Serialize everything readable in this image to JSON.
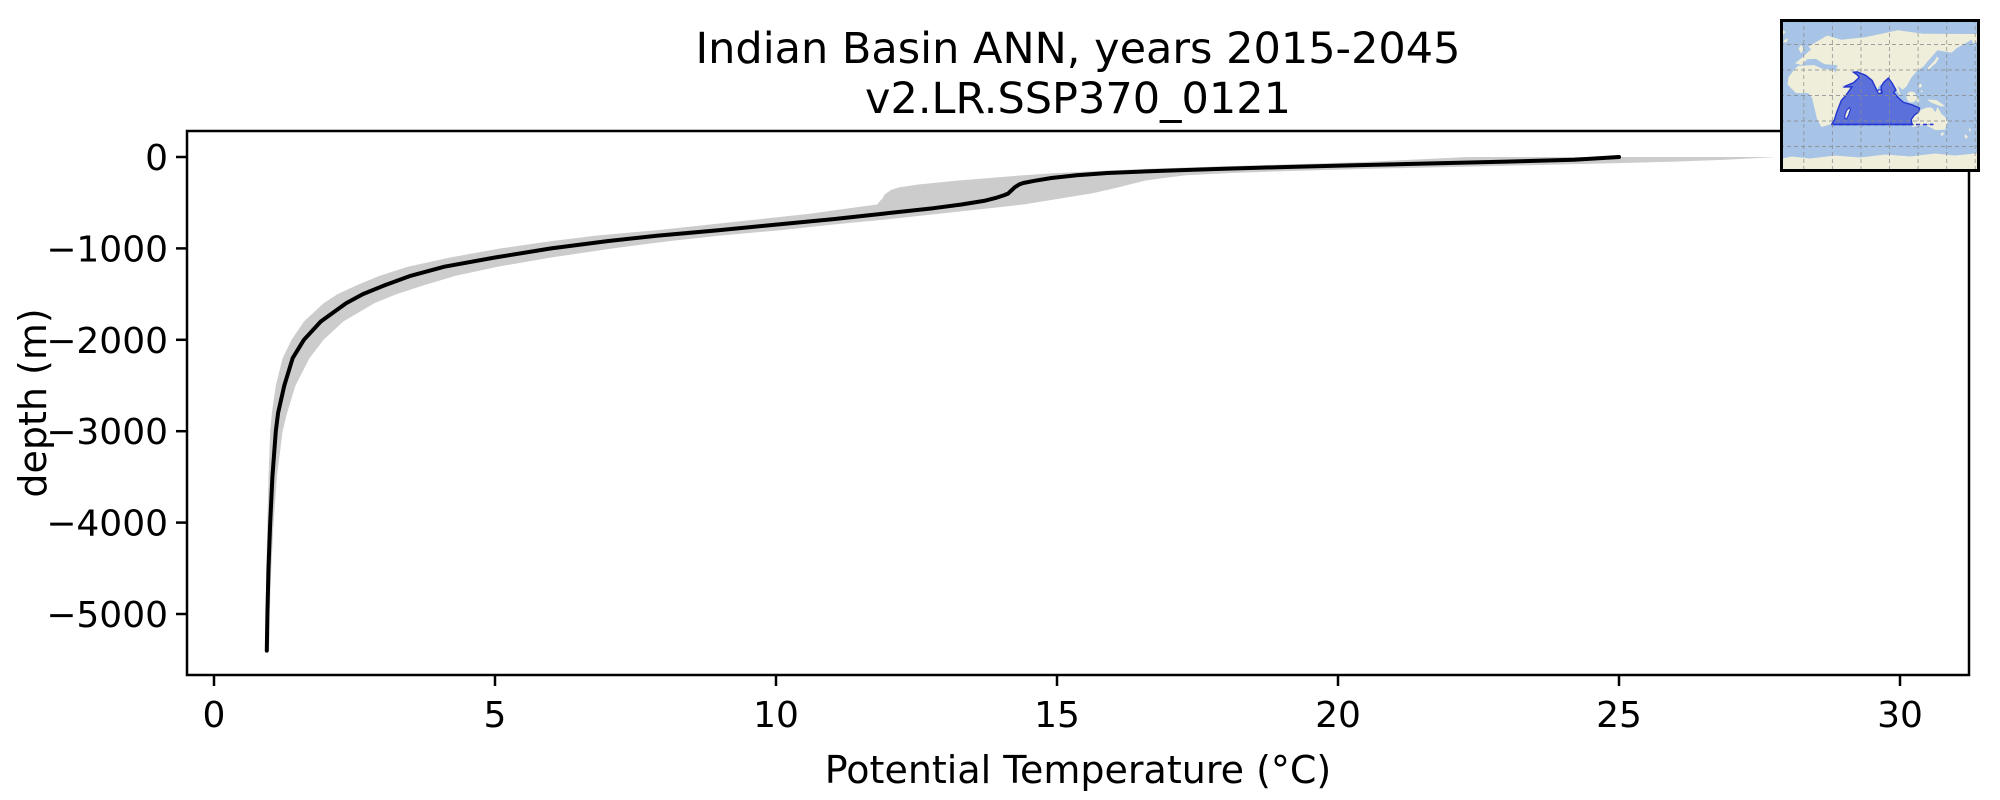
{
  "chart_data": {
    "type": "line",
    "title_lines": [
      "Indian Basin ANN, years 2015-2045",
      "v2.LR.SSP370_0121"
    ],
    "xlabel": "Potential Temperature (°C)",
    "ylabel": "depth (m)",
    "xlim": [
      -0.5,
      31.2
    ],
    "ylim": [
      -5667,
      284
    ],
    "grid": false,
    "legend": "none",
    "x_ticks": [
      {
        "value": 0,
        "label": "0"
      },
      {
        "value": 5,
        "label": "5"
      },
      {
        "value": 10,
        "label": "10"
      },
      {
        "value": 15,
        "label": "15"
      },
      {
        "value": 20,
        "label": "20"
      },
      {
        "value": 25,
        "label": "25"
      },
      {
        "value": 30,
        "label": "30"
      }
    ],
    "y_ticks": [
      {
        "value": 0,
        "label": "0"
      },
      {
        "value": -1000,
        "label": "−1000"
      },
      {
        "value": -2000,
        "label": "−2000"
      },
      {
        "value": -3000,
        "label": "−3000"
      },
      {
        "value": -4000,
        "label": "−4000"
      },
      {
        "value": -5000,
        "label": "−5000"
      }
    ],
    "series": [
      {
        "name": "mean-profile",
        "color": "#000000",
        "line_width": 4,
        "depth": [
          0,
          -30,
          -50,
          -70,
          -90,
          -110,
          -130,
          -150,
          -175,
          -200,
          -230,
          -260,
          -284,
          -300,
          -330,
          -360,
          -400,
          -420,
          -450,
          -480,
          -520,
          -560,
          -620,
          -680,
          -740,
          -800,
          -860,
          -920,
          -1000,
          -1100,
          -1200,
          -1300,
          -1400,
          -1500,
          -1600,
          -1800,
          -2000,
          -2200,
          -2500,
          -2800,
          -3000,
          -3500,
          -4000,
          -4500,
          -5000,
          -5400
        ],
        "temperature": [
          25.0,
          24.2,
          23.0,
          21.7,
          20.3,
          19.0,
          17.9,
          16.9,
          15.9,
          15.35,
          14.9,
          14.6,
          14.4,
          14.33,
          14.25,
          14.2,
          14.13,
          14.05,
          13.9,
          13.7,
          13.3,
          12.8,
          11.9,
          11.0,
          10.0,
          9.0,
          7.9,
          7.0,
          6.0,
          5.0,
          4.1,
          3.5,
          3.05,
          2.65,
          2.35,
          1.9,
          1.6,
          1.4,
          1.25,
          1.14,
          1.1,
          1.04,
          1.0,
          0.97,
          0.95,
          0.94
        ]
      }
    ],
    "band": {
      "name": "spread-band",
      "color": "#cccccc",
      "depth": [
        0,
        -30,
        -50,
        -70,
        -90,
        -110,
        -130,
        -150,
        -175,
        -200,
        -230,
        -260,
        -284,
        -300,
        -330,
        -360,
        -400,
        -420,
        -450,
        -480,
        -520,
        -560,
        -620,
        -680,
        -740,
        -800,
        -860,
        -920,
        -1000,
        -1100,
        -1200,
        -1300,
        -1400,
        -1500,
        -1600,
        -1800,
        -2000,
        -2200,
        -2500,
        -2800,
        -3000,
        -3500,
        -4000,
        -4500,
        -5000,
        -5400
      ],
      "t_min": [
        22.3,
        21.3,
        20.6,
        19.7,
        18.6,
        17.5,
        16.6,
        15.8,
        15.0,
        14.4,
        13.8,
        13.2,
        12.8,
        12.55,
        12.2,
        12.05,
        11.95,
        11.92,
        11.9,
        11.85,
        11.8,
        11.3,
        10.6,
        9.7,
        8.8,
        7.9,
        6.8,
        6.0,
        5.1,
        4.2,
        3.45,
        2.95,
        2.55,
        2.2,
        1.95,
        1.6,
        1.38,
        1.22,
        1.1,
        1.03,
        1.0,
        0.97,
        0.95,
        0.93,
        0.92,
        0.91
      ],
      "t_max": [
        27.8,
        26.9,
        26.0,
        24.8,
        23.4,
        21.9,
        20.5,
        19.3,
        18.1,
        17.3,
        16.9,
        16.55,
        16.4,
        16.3,
        16.1,
        15.9,
        15.6,
        15.4,
        15.1,
        14.8,
        14.4,
        13.8,
        12.9,
        12.0,
        11.0,
        10.1,
        9.0,
        8.1,
        7.1,
        6.0,
        5.05,
        4.3,
        3.75,
        3.25,
        2.85,
        2.3,
        1.95,
        1.7,
        1.45,
        1.3,
        1.22,
        1.12,
        1.06,
        1.02,
        0.99,
        0.98
      ]
    },
    "colors": {
      "curve": "#000000",
      "band": "#cccccc",
      "spine": "#000000",
      "background": "#ffffff"
    },
    "inset_map": {
      "highlight_region": "indian-ocean-basin",
      "ocean_color": "#a7c3e6",
      "land_color": "#efeeda",
      "highlight_fill": "#4a5ed8",
      "highlight_edge": "#2434cf",
      "grid_color": "#8a8a8a",
      "border_color": "#000000"
    }
  }
}
